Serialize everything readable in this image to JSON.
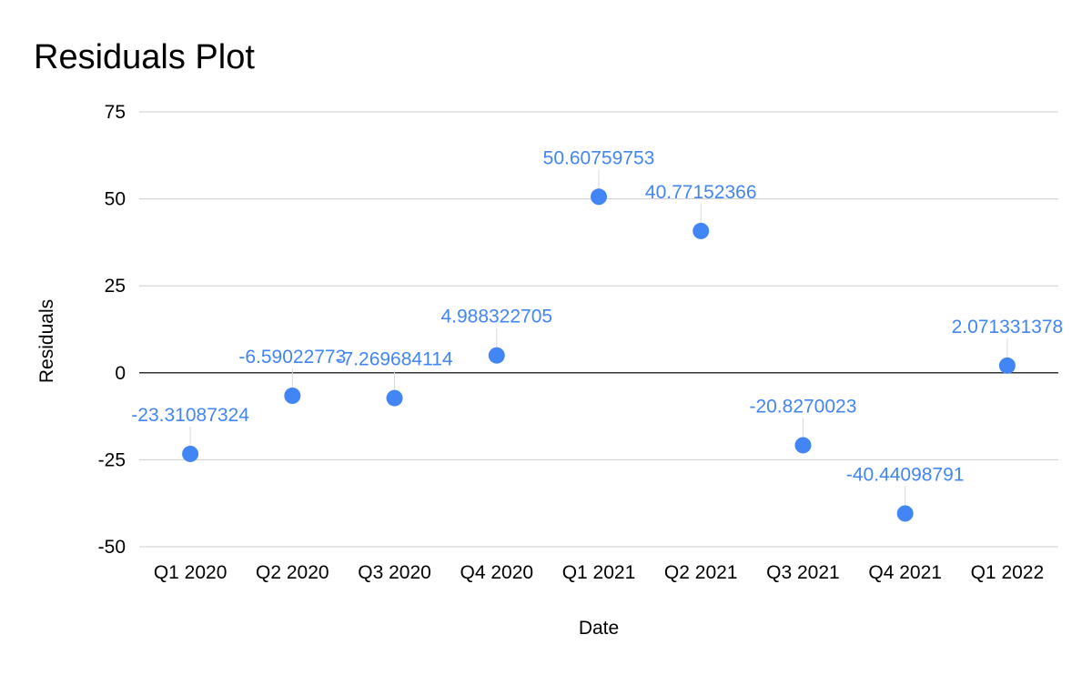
{
  "chart_data": {
    "type": "scatter",
    "title": "Residuals Plot",
    "xlabel": "Date",
    "ylabel": "Residuals",
    "categories": [
      "Q1 2020",
      "Q2 2020",
      "Q3 2020",
      "Q4 2020",
      "Q1 2021",
      "Q2 2021",
      "Q3 2021",
      "Q4 2021",
      "Q1 2022"
    ],
    "series": [
      {
        "values": [
          -23.31087324,
          -6.5902277,
          -7.269684114,
          4.988322705,
          50.60759753,
          40.77152366,
          -20.8270023,
          -40.44098791,
          2.071331378
        ],
        "labels": [
          "-23.31087324",
          "-6.59022773",
          "-7.269684114",
          "4.988322705",
          "50.60759753",
          "40.77152366",
          "-20.8270023",
          "-40.44098791",
          "2.071331378"
        ],
        "color": "#4285f4"
      }
    ],
    "ylim": [
      -50,
      75
    ],
    "yticks": [
      -50,
      -25,
      0,
      25,
      50,
      75
    ],
    "grid": true,
    "legend": "none",
    "colors": {
      "point": "#4285f4",
      "label": "#4285f4",
      "grid": "#cccccc",
      "zero_line": "#333333",
      "leader": "#d9d9d9"
    }
  }
}
